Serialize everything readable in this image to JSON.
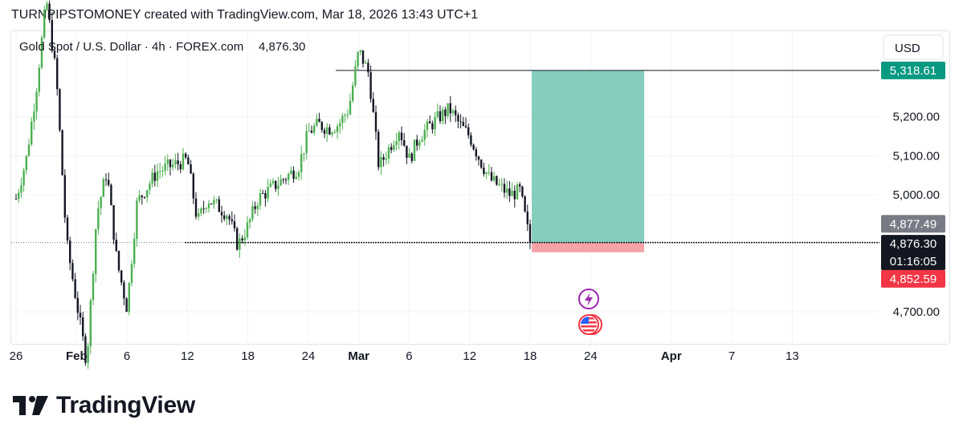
{
  "header": {
    "text": "TURNPIPSTOMONEY created with TradingView.com, Mar 18, 2026 13:43 UTC+1"
  },
  "legend": {
    "symbol": "Gold Spot / U.S. Dollar · 4h · FOREX.com",
    "last": "4,876.30"
  },
  "currency": "USD",
  "price_labels": {
    "target": "5,318.61",
    "prev_close": "4,877.49",
    "current": "4,876.30",
    "countdown": "01:16:05",
    "stop": "4,852.59"
  },
  "colors": {
    "up": "#4caf50",
    "down": "#131722",
    "profit_zone": "#86cdbd",
    "loss_zone": "#f6a3a8",
    "target_badge": "#089981",
    "stop_badge": "#f23645",
    "current_badge": "#131722",
    "prev_badge": "#787b86",
    "event_lightning": "#9c27b0"
  },
  "icons": [
    "lightning-event-icon",
    "us-flag-event-icon"
  ],
  "brand": {
    "name": "TradingView"
  },
  "chart_data": {
    "type": "candlestick",
    "title": "Gold Spot / U.S. Dollar · 4h · FOREX.com",
    "ylim": [
      4630,
      5430
    ],
    "y_ticks": [
      {
        "value": 4700,
        "label": "4,700.00"
      },
      {
        "value": 5000,
        "label": "5,000.00"
      },
      {
        "value": 5100,
        "label": "5,100.00"
      },
      {
        "value": 5200,
        "label": "5,200.00"
      }
    ],
    "x_ticks": [
      "26",
      "Feb",
      "6",
      "12",
      "18",
      "24",
      "Mar",
      "6",
      "12",
      "18",
      "24",
      "Apr",
      "7",
      "13"
    ],
    "x_dates": [
      "2026-01-26",
      "2026-02-01",
      "2026-02-06",
      "2026-02-12",
      "2026-02-18",
      "2026-02-24",
      "2026-03-01",
      "2026-03-06",
      "2026-03-12",
      "2026-03-18",
      "2026-03-24",
      "2026-04-01",
      "2026-04-07",
      "2026-04-13"
    ],
    "price_path_approx": [
      [
        "2026-01-26",
        4990
      ],
      [
        "2026-01-27",
        5090
      ],
      [
        "2026-01-28",
        5270
      ],
      [
        "2026-01-29",
        5500
      ],
      [
        "2026-01-30",
        5300
      ],
      [
        "2026-01-31",
        4880
      ],
      [
        "2026-02-02",
        4570
      ],
      [
        "2026-02-03",
        4950
      ],
      [
        "2026-02-04",
        5060
      ],
      [
        "2026-02-05",
        4830
      ],
      [
        "2026-02-06",
        4710
      ],
      [
        "2026-02-07",
        4980
      ],
      [
        "2026-02-09",
        5060
      ],
      [
        "2026-02-11",
        5080
      ],
      [
        "2026-02-12",
        5090
      ],
      [
        "2026-02-13",
        4930
      ],
      [
        "2026-02-14",
        4990
      ],
      [
        "2026-02-16",
        4950
      ],
      [
        "2026-02-17",
        4870
      ],
      [
        "2026-02-18",
        4920
      ],
      [
        "2026-02-19",
        4990
      ],
      [
        "2026-02-20",
        5010
      ],
      [
        "2026-02-23",
        5070
      ],
      [
        "2026-02-24",
        5160
      ],
      [
        "2026-02-25",
        5180
      ],
      [
        "2026-02-26",
        5170
      ],
      [
        "2026-02-27",
        5180
      ],
      [
        "2026-02-28",
        5220
      ],
      [
        "2026-03-01",
        5370
      ],
      [
        "2026-03-02",
        5310
      ],
      [
        "2026-03-03",
        5070
      ],
      [
        "2026-03-04",
        5120
      ],
      [
        "2026-03-05",
        5170
      ],
      [
        "2026-03-06",
        5090
      ],
      [
        "2026-03-07",
        5150
      ],
      [
        "2026-03-09",
        5200
      ],
      [
        "2026-03-10",
        5220
      ],
      [
        "2026-03-11",
        5180
      ],
      [
        "2026-03-12",
        5150
      ],
      [
        "2026-03-13",
        5090
      ],
      [
        "2026-03-14",
        5040
      ],
      [
        "2026-03-16",
        5000
      ],
      [
        "2026-03-17",
        5010
      ],
      [
        "2026-03-18",
        4876.3
      ]
    ],
    "lines": [
      {
        "name": "target",
        "value": 5318.61
      },
      {
        "name": "entry",
        "value": 4877.49
      },
      {
        "name": "stop",
        "value": 4852.59
      }
    ],
    "position": {
      "entry": 4877.49,
      "target": 5318.61,
      "stop": 4852.59,
      "start": "2026-03-18",
      "end": "2026-03-29"
    },
    "grid": true,
    "legend_position": "top-left"
  }
}
